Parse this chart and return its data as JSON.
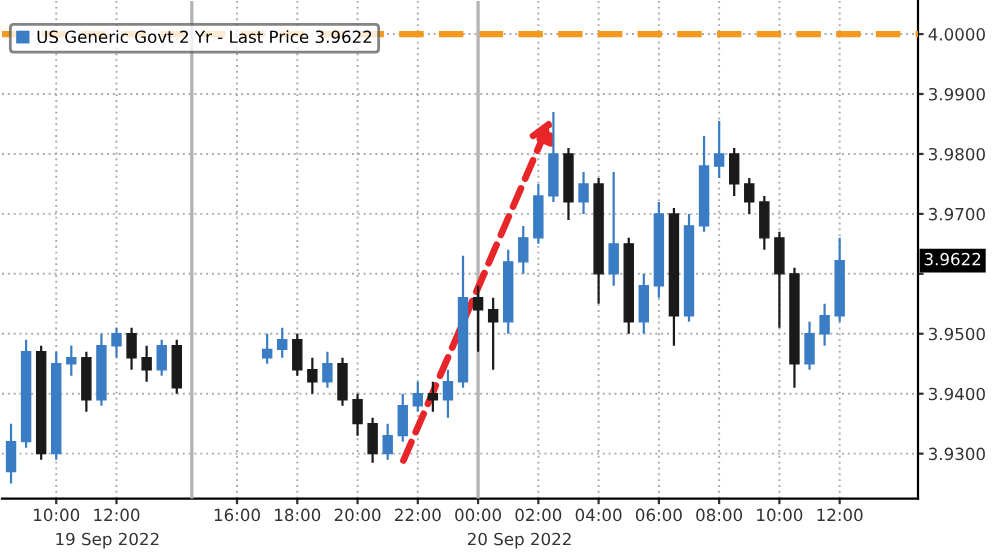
{
  "chart_data": {
    "type": "candlestick",
    "x": [
      "2022-09-19T08:30",
      "2022-09-19T09:00",
      "2022-09-19T09:30",
      "2022-09-19T10:00",
      "2022-09-19T10:30",
      "2022-09-19T11:00",
      "2022-09-19T11:30",
      "2022-09-19T12:00",
      "2022-09-19T12:30",
      "2022-09-19T13:00",
      "2022-09-19T13:30",
      "2022-09-19T14:00",
      "2022-09-19T17:00",
      "2022-09-19T17:30",
      "2022-09-19T18:00",
      "2022-09-19T18:30",
      "2022-09-19T19:00",
      "2022-09-19T19:30",
      "2022-09-19T20:00",
      "2022-09-19T20:30",
      "2022-09-19T21:00",
      "2022-09-19T21:30",
      "2022-09-19T22:00",
      "2022-09-19T22:30",
      "2022-09-19T23:00",
      "2022-09-19T23:30",
      "2022-09-20T00:00",
      "2022-09-20T00:30",
      "2022-09-20T01:00",
      "2022-09-20T01:30",
      "2022-09-20T02:00",
      "2022-09-20T02:30",
      "2022-09-20T03:00",
      "2022-09-20T03:30",
      "2022-09-20T04:00",
      "2022-09-20T04:30",
      "2022-09-20T05:00",
      "2022-09-20T05:30",
      "2022-09-20T06:00",
      "2022-09-20T06:30",
      "2022-09-20T07:00",
      "2022-09-20T07:30",
      "2022-09-20T08:00",
      "2022-09-20T08:30",
      "2022-09-20T09:00",
      "2022-09-20T09:30",
      "2022-09-20T10:00",
      "2022-09-20T10:30",
      "2022-09-20T11:00",
      "2022-09-20T11:30",
      "2022-09-20T12:00"
    ],
    "series": [
      {
        "name": "US Generic Govt 2 Yr - Last Price 3.9622",
        "colors": [
          "#3b7dc4",
          "#3b7dc4",
          "#1a1a1a",
          "#3b7dc4",
          "#3b7dc4",
          "#1a1a1a",
          "#3b7dc4",
          "#3b7dc4",
          "#1a1a1a",
          "#1a1a1a",
          "#3b7dc4",
          "#1a1a1a",
          "#3b7dc4",
          "#3b7dc4",
          "#1a1a1a",
          "#1a1a1a",
          "#3b7dc4",
          "#1a1a1a",
          "#1a1a1a",
          "#1a1a1a",
          "#3b7dc4",
          "#3b7dc4",
          "#3b7dc4",
          "#1a1a1a",
          "#3b7dc4",
          "#3b7dc4",
          "#1a1a1a",
          "#1a1a1a",
          "#3b7dc4",
          "#3b7dc4",
          "#3b7dc4",
          "#3b7dc4",
          "#1a1a1a",
          "#3b7dc4",
          "#1a1a1a",
          "#3b7dc4",
          "#1a1a1a",
          "#3b7dc4",
          "#3b7dc4",
          "#1a1a1a",
          "#3b7dc4",
          "#3b7dc4",
          "#3b7dc4",
          "#1a1a1a",
          "#1a1a1a",
          "#1a1a1a",
          "#1a1a1a",
          "#1a1a1a",
          "#3b7dc4",
          "#3b7dc4",
          "#3b7dc4"
        ],
        "ohlc": [
          [
            3.927,
            3.935,
            3.925,
            3.932
          ],
          [
            3.932,
            3.949,
            3.931,
            3.947
          ],
          [
            3.947,
            3.948,
            3.929,
            3.93
          ],
          [
            3.93,
            3.947,
            3.929,
            3.945
          ],
          [
            3.945,
            3.948,
            3.943,
            3.946
          ],
          [
            3.946,
            3.947,
            3.937,
            3.939
          ],
          [
            3.939,
            3.95,
            3.938,
            3.948
          ],
          [
            3.948,
            3.951,
            3.946,
            3.95
          ],
          [
            3.95,
            3.951,
            3.944,
            3.946
          ],
          [
            3.946,
            3.948,
            3.942,
            3.944
          ],
          [
            3.944,
            3.949,
            3.943,
            3.948
          ],
          [
            3.948,
            3.949,
            3.94,
            3.941
          ],
          [
            3.946,
            3.95,
            3.945,
            3.9474
          ],
          [
            3.9474,
            3.951,
            3.946,
            3.949
          ],
          [
            3.949,
            3.95,
            3.943,
            3.944
          ],
          [
            3.944,
            3.946,
            3.94,
            3.942
          ],
          [
            3.942,
            3.947,
            3.941,
            3.945
          ],
          [
            3.945,
            3.946,
            3.938,
            3.939
          ],
          [
            3.939,
            3.94,
            3.933,
            3.935
          ],
          [
            3.935,
            3.936,
            3.9285,
            3.93
          ],
          [
            3.93,
            3.935,
            3.929,
            3.933
          ],
          [
            3.933,
            3.94,
            3.932,
            3.938
          ],
          [
            3.938,
            3.942,
            3.937,
            3.94
          ],
          [
            3.94,
            3.942,
            3.937,
            3.939
          ],
          [
            3.939,
            3.944,
            3.936,
            3.942
          ],
          [
            3.942,
            3.963,
            3.941,
            3.956
          ],
          [
            3.956,
            3.958,
            3.947,
            3.954
          ],
          [
            3.954,
            3.956,
            3.944,
            3.952
          ],
          [
            3.952,
            3.964,
            3.95,
            3.962
          ],
          [
            3.962,
            3.968,
            3.96,
            3.966
          ],
          [
            3.966,
            3.975,
            3.965,
            3.973
          ],
          [
            3.973,
            3.987,
            3.972,
            3.98
          ],
          [
            3.98,
            3.981,
            3.969,
            3.972
          ],
          [
            3.972,
            3.977,
            3.97,
            3.975
          ],
          [
            3.975,
            3.976,
            3.955,
            3.96
          ],
          [
            3.96,
            3.977,
            3.958,
            3.965
          ],
          [
            3.965,
            3.966,
            3.95,
            3.952
          ],
          [
            3.952,
            3.96,
            3.95,
            3.958
          ],
          [
            3.958,
            3.972,
            3.956,
            3.97
          ],
          [
            3.97,
            3.971,
            3.948,
            3.953
          ],
          [
            3.953,
            3.97,
            3.952,
            3.968
          ],
          [
            3.968,
            3.983,
            3.967,
            3.978
          ],
          [
            3.978,
            3.9855,
            3.976,
            3.98
          ],
          [
            3.98,
            3.981,
            3.973,
            3.975
          ],
          [
            3.975,
            3.976,
            3.97,
            3.972
          ],
          [
            3.972,
            3.973,
            3.964,
            3.966
          ],
          [
            3.966,
            3.967,
            3.951,
            3.96
          ],
          [
            3.96,
            3.961,
            3.941,
            3.945
          ],
          [
            3.945,
            3.952,
            3.944,
            3.95
          ],
          [
            3.95,
            3.955,
            3.948,
            3.953
          ],
          [
            3.953,
            3.966,
            3.952,
            3.9622
          ]
        ]
      }
    ],
    "xlim": [
      "2022-09-19T08:12",
      "2022-09-20T14:36"
    ],
    "xticks": [
      {
        "value": "2022-09-19T10:00",
        "label": "10:00"
      },
      {
        "value": "2022-09-19T12:00",
        "label": "12:00"
      },
      {
        "value": "2022-09-19T16:00",
        "label": "16:00"
      },
      {
        "value": "2022-09-19T18:00",
        "label": "18:00"
      },
      {
        "value": "2022-09-19T20:00",
        "label": "20:00"
      },
      {
        "value": "2022-09-19T22:00",
        "label": "22:00"
      },
      {
        "value": "2022-09-20T00:00",
        "label": "00:00"
      },
      {
        "value": "2022-09-20T02:00",
        "label": "02:00"
      },
      {
        "value": "2022-09-20T04:00",
        "label": "04:00"
      },
      {
        "value": "2022-09-20T06:00",
        "label": "06:00"
      },
      {
        "value": "2022-09-20T08:00",
        "label": "08:00"
      },
      {
        "value": "2022-09-20T10:00",
        "label": "10:00"
      },
      {
        "value": "2022-09-20T12:00",
        "label": "12:00"
      }
    ],
    "ylim": [
      3.9225,
      4.0055
    ],
    "yticks": [
      {
        "value": 3.93,
        "label": "3.9300"
      },
      {
        "value": 3.94,
        "label": "3.9400"
      },
      {
        "value": 3.95,
        "label": "3.9500"
      },
      {
        "value": 3.96,
        "label": null
      },
      {
        "value": 3.97,
        "label": "3.9700"
      },
      {
        "value": 3.98,
        "label": "3.9800"
      },
      {
        "value": 3.99,
        "label": "3.9900"
      },
      {
        "value": 4.0,
        "label": "4.0000"
      }
    ],
    "ref_lines": [
      {
        "axis": "y",
        "value": 4.0,
        "color": "#f39a1e",
        "line_style": "dashed"
      },
      {
        "axis": "x",
        "value": "2022-09-19T14:30",
        "color": "#b4b4b4",
        "line_style": "solid"
      },
      {
        "axis": "x",
        "value": "2022-09-20T00:00",
        "color": "#b4b4b4",
        "line_style": "solid"
      }
    ],
    "annotations": [
      "19 Sep 2022",
      "20 Sep 2022",
      {
        "text": "3.9622",
        "y": 3.9622
      }
    ],
    "grid": true,
    "legend": "top left"
  }
}
